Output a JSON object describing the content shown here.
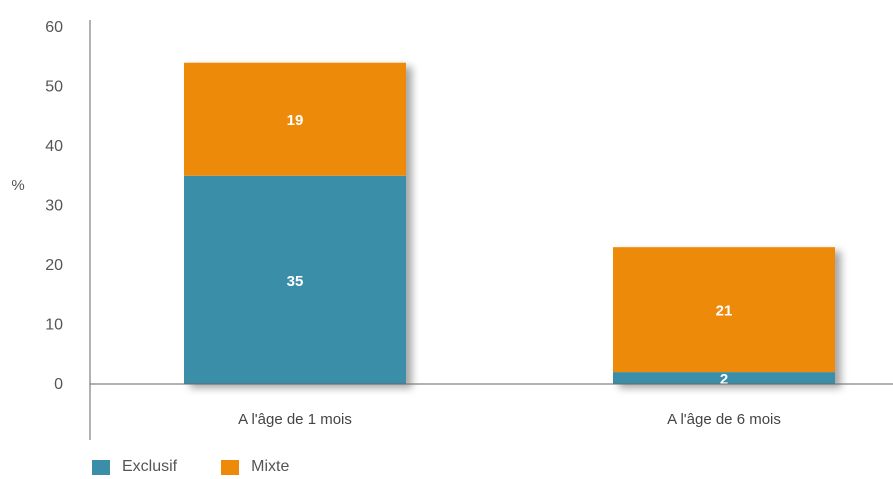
{
  "chart_data": {
    "type": "bar",
    "stacked": true,
    "ylabel": "%",
    "ylim": [
      0,
      60
    ],
    "yticks": [
      "0",
      "10",
      "20",
      "30",
      "40",
      "50",
      "60"
    ],
    "categories": [
      "A l'âge de 1 mois",
      "A l'âge de 6 mois"
    ],
    "series": [
      {
        "name": "Exclusif",
        "color": "#3a8ea8",
        "values": [
          35,
          2
        ]
      },
      {
        "name": "Mixte",
        "color": "#ed8a0a",
        "values": [
          19,
          21
        ]
      }
    ],
    "grid": false,
    "legend_position": "bottom-left"
  }
}
